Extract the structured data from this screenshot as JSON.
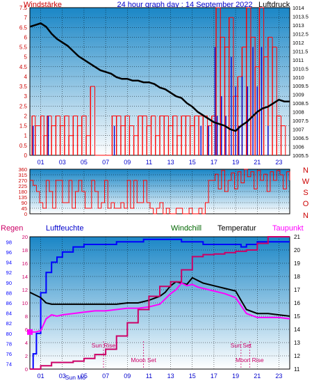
{
  "header": {
    "title": "24 hour graph day : 14 September 2022",
    "left_label": "Windstärke",
    "right_label": "Luftdruck"
  },
  "legend": {
    "regen": "Regen",
    "luftfeuchte": "Luftfeuchte",
    "windchill": "Windchill",
    "temperatur": "Temperatur",
    "taupunkt": "Taupunkt"
  },
  "compass": [
    "N",
    "W",
    "S",
    "O",
    "N"
  ],
  "colors": {
    "background_top": "#1a86c6",
    "background_bottom": "#ffffff",
    "wind": "#ff0000",
    "gust": "#0000cc",
    "pressure": "#000000",
    "temperature": "#000000",
    "humidity": "#0000ff",
    "dewpoint": "#ff00ff",
    "rain": "#cc0066",
    "axis_wind": "#cc0000",
    "axis_pressure": "#000000"
  },
  "annotations": [
    {
      "label": "Sun Rise",
      "hour": 6.8
    },
    {
      "label": "Sun Set",
      "hour": 19.5
    },
    {
      "label": "Moon Set",
      "hour": 10.5
    },
    {
      "label": "Moon Rise",
      "hour": 20.3
    },
    {
      "label": "Sun Mo",
      "hour": 4.2
    }
  ],
  "chart_data": [
    {
      "type": "line",
      "name": "wind_pressure",
      "xlabel": "",
      "x_ticks": [
        "01",
        "03",
        "05",
        "07",
        "09",
        "11",
        "13",
        "15",
        "17",
        "19",
        "21",
        "23"
      ],
      "x_tick_hours": [
        1,
        3,
        5,
        7,
        9,
        11,
        13,
        15,
        17,
        19,
        21,
        23
      ],
      "xlim": [
        0,
        24
      ],
      "ylabel_left": "Windstärke",
      "ylim_left": [
        0,
        7.5
      ],
      "yticks_left": [
        "0",
        "0.5",
        "1",
        "1.5",
        "2",
        "2.5",
        "3",
        "3.5",
        "4",
        "4.5",
        "5",
        "5.5",
        "6",
        "6.5",
        "7",
        "7.5"
      ],
      "ylabel_right": "Luftdruck",
      "ylim_right": [
        1005.5,
        1014
      ],
      "yticks_right": [
        "1005.5",
        "1006",
        "1006.5",
        "1007",
        "1007.5",
        "1008",
        "1008.5",
        "1009",
        "1009.5",
        "1010",
        "1010.5",
        "1011",
        "1011.5",
        "1012",
        "1012.5",
        "1013",
        "1013.5",
        "1014"
      ],
      "series": [
        {
          "name": "Luftdruck",
          "axis": "right",
          "x": [
            0,
            0.5,
            1,
            1.5,
            2,
            2.5,
            3,
            3.5,
            4,
            4.5,
            5,
            5.5,
            6,
            6.5,
            7,
            7.5,
            8,
            8.5,
            9,
            9.5,
            10,
            10.5,
            11,
            11.5,
            12,
            12.5,
            13,
            13.5,
            14,
            14.5,
            15,
            15.5,
            16,
            16.5,
            17,
            17.5,
            18,
            18.5,
            19,
            19.5,
            20,
            20.5,
            21,
            21.5,
            22,
            22.5,
            23,
            23.5,
            24
          ],
          "y": [
            1012.9,
            1013.0,
            1013.1,
            1012.9,
            1012.5,
            1012.2,
            1012.0,
            1011.8,
            1011.5,
            1011.2,
            1011.0,
            1010.8,
            1010.6,
            1010.4,
            1010.3,
            1010.2,
            1010.0,
            1009.9,
            1009.9,
            1009.8,
            1009.8,
            1009.7,
            1009.7,
            1009.6,
            1009.4,
            1009.3,
            1009.1,
            1008.9,
            1008.8,
            1008.5,
            1008.3,
            1008.0,
            1007.8,
            1007.6,
            1007.4,
            1007.3,
            1007.2,
            1007.0,
            1006.9,
            1007.2,
            1007.4,
            1007.7,
            1008.0,
            1008.2,
            1008.3,
            1008.5,
            1008.7,
            1008.6,
            1008.6
          ]
        },
        {
          "name": "Windstärke",
          "axis": "left",
          "style": "spikes",
          "x": [
            0.2,
            0.5,
            1,
            1.3,
            1.6,
            2,
            2.4,
            2.8,
            3.2,
            3.6,
            4,
            4.4,
            4.8,
            5.2,
            5.6,
            6,
            6.4,
            6.8,
            7.2,
            7.6,
            8,
            8.4,
            8.8,
            9.2,
            9.6,
            10,
            10.4,
            10.8,
            11.2,
            11.6,
            12,
            12.4,
            12.8,
            13.2,
            13.6,
            14,
            14.4,
            14.8,
            15.2,
            15.6,
            16,
            16.4,
            16.8,
            17.2,
            17.6,
            18,
            18.4,
            18.8,
            19.2,
            19.6,
            20,
            20.4,
            20.8,
            21.2,
            21.6,
            22,
            22.4,
            22.8,
            23.2,
            23.6
          ],
          "y": [
            2,
            1.5,
            2,
            1,
            2,
            1.5,
            2,
            1.5,
            2,
            1,
            2,
            1.5,
            2,
            1,
            3.5,
            0,
            0,
            0,
            0,
            2,
            2,
            1.5,
            2,
            1.5,
            1,
            2,
            2,
            1.5,
            2,
            1,
            2,
            2,
            1.5,
            2,
            1,
            2,
            2,
            1.5,
            2,
            2,
            2,
            1.5,
            2,
            7.5,
            6,
            5.5,
            7,
            3,
            4,
            5.5,
            7.5,
            6,
            4.5,
            7.5,
            5,
            6,
            5.5,
            2,
            1.5,
            0
          ]
        },
        {
          "name": "Böen",
          "axis": "left",
          "style": "spikes",
          "x": [
            0.3,
            1.7,
            7.8,
            15.8,
            16.5,
            17.1,
            17.3,
            17.7,
            18.1,
            18.6,
            19.0,
            19.3,
            19.6,
            20.1,
            20.6,
            21.0,
            21.4,
            22.0
          ],
          "y": [
            1.5,
            2,
            1.5,
            1.5,
            1.5,
            5.5,
            2,
            3,
            2,
            5,
            3.5,
            1.5,
            4,
            3.5,
            5.5,
            3.5,
            5.5,
            1.5
          ]
        }
      ]
    },
    {
      "type": "line",
      "name": "wind_direction",
      "ylabel": "",
      "ylim": [
        0,
        360
      ],
      "yticks": [
        "0",
        "45",
        "90",
        "135",
        "180",
        "225",
        "270",
        "315",
        "360"
      ],
      "xlim": [
        0,
        24
      ],
      "series": [
        {
          "name": "Windrichtung",
          "x": [
            0,
            0.3,
            0.6,
            0.9,
            1.2,
            1.5,
            1.8,
            2.1,
            2.4,
            2.7,
            3,
            3.3,
            3.6,
            3.9,
            4.2,
            4.5,
            4.8,
            5.1,
            5.4,
            5.7,
            6,
            6.3,
            6.6,
            6.9,
            7.2,
            7.5,
            7.8,
            8.1,
            8.4,
            8.7,
            9,
            9.3,
            9.6,
            9.9,
            10.2,
            10.5,
            10.8,
            11.1,
            11.4,
            11.7,
            12,
            12.3,
            12.6,
            12.9,
            13.2,
            13.5,
            13.8,
            14.1,
            14.4,
            14.7,
            15,
            15.3,
            15.6,
            15.9,
            16.2,
            16.5,
            16.8,
            17.1,
            17.4,
            17.7,
            18,
            18.3,
            18.6,
            18.9,
            19.2,
            19.5,
            19.8,
            20.1,
            20.4,
            20.7,
            21,
            21.3,
            21.6,
            21.9,
            22.2,
            22.5,
            22.8,
            23.1,
            23.4,
            23.7,
            24
          ],
          "y": [
            270,
            230,
            180,
            90,
            45,
            270,
            180,
            45,
            270,
            270,
            90,
            90,
            270,
            45,
            180,
            270,
            180,
            45,
            45,
            270,
            180,
            45,
            90,
            270,
            45,
            90,
            45,
            45,
            90,
            45,
            270,
            45,
            270,
            90,
            90,
            270,
            90,
            45,
            0,
            45,
            90,
            0,
            45,
            0,
            0,
            45,
            45,
            0,
            0,
            45,
            0,
            0,
            45,
            0,
            90,
            270,
            270,
            320,
            200,
            350,
            180,
            270,
            330,
            200,
            340,
            250,
            360,
            300,
            340,
            200,
            350,
            270,
            320,
            180,
            340,
            270,
            350,
            315,
            200,
            340,
            270
          ]
        }
      ]
    },
    {
      "type": "line",
      "name": "temperature_humidity",
      "xlim": [
        0,
        24
      ],
      "x_ticks": [
        "01",
        "03",
        "05",
        "07",
        "09",
        "11",
        "13",
        "15",
        "17",
        "19",
        "21",
        "23"
      ],
      "x_tick_hours": [
        1,
        3,
        5,
        7,
        9,
        11,
        13,
        15,
        17,
        19,
        21,
        23
      ],
      "ylabel_left": "Luftfeuchte",
      "ylim_left": [
        73,
        99
      ],
      "yticks_left": [
        "74",
        "76",
        "78",
        "80",
        "82",
        "84",
        "86",
        "88",
        "90",
        "92",
        "94",
        "96",
        "98"
      ],
      "ylabel_rain": "Regen",
      "ylim_rain": [
        0,
        20
      ],
      "yticks_rain": [
        "0",
        "2",
        "4",
        "6",
        "8",
        "10",
        "12",
        "14",
        "16",
        "18",
        "20"
      ],
      "ylabel_right": "Temperatur",
      "ylim_right": [
        11,
        21
      ],
      "yticks_right": [
        "11",
        "12",
        "13",
        "14",
        "15",
        "16",
        "17",
        "18",
        "19",
        "20",
        "21"
      ],
      "series": [
        {
          "name": "Luftfeuchte",
          "axis": "left",
          "x": [
            0,
            0.3,
            0.6,
            1,
            1.5,
            2,
            2.5,
            3,
            3.5,
            4,
            5,
            6,
            7,
            8,
            9,
            10,
            10.5,
            11,
            12,
            13,
            14,
            15,
            16,
            17,
            18,
            19,
            19.5,
            20,
            21,
            22,
            23,
            24
          ],
          "y": [
            73,
            76,
            80,
            88,
            92,
            94,
            95,
            96,
            96,
            97,
            97.5,
            97.5,
            97.5,
            98,
            98,
            98,
            98.5,
            98.5,
            98.5,
            98.5,
            98,
            98,
            97.5,
            97.5,
            97.5,
            97.5,
            97,
            97.5,
            98,
            98,
            98,
            98
          ]
        },
        {
          "name": "Temperatur",
          "axis": "right",
          "x": [
            0,
            0.5,
            1,
            1.5,
            2,
            3,
            4,
            5,
            6,
            7,
            8,
            9,
            10,
            11,
            12,
            12.5,
            13,
            13.5,
            14,
            14.5,
            15,
            15.5,
            16,
            17,
            18,
            19,
            19.5,
            20,
            21,
            22,
            23,
            24
          ],
          "y": [
            16.8,
            16.6,
            16.4,
            16.0,
            15.9,
            15.9,
            15.9,
            15.9,
            15.9,
            15.9,
            15.9,
            16.0,
            16.0,
            16.2,
            16.5,
            16.8,
            17.3,
            17.6,
            17.5,
            17.4,
            17.9,
            17.7,
            17.5,
            17.3,
            17.1,
            16.9,
            16.2,
            15.5,
            15.2,
            15.2,
            15.1,
            15.0
          ]
        },
        {
          "name": "Taupunkt",
          "axis": "right",
          "x": [
            0,
            0.5,
            1,
            1.5,
            2,
            2.5,
            3,
            4,
            5,
            6,
            7,
            8,
            9,
            10,
            11,
            12,
            12.5,
            13,
            13.5,
            14,
            14.5,
            15,
            15.5,
            16,
            17,
            18,
            19,
            19.5,
            20,
            21,
            22,
            23,
            24
          ],
          "y": [
            13.8,
            13.8,
            13.9,
            14.8,
            15.1,
            15.0,
            15.1,
            15.2,
            15.3,
            15.4,
            15.4,
            15.5,
            15.6,
            15.6,
            15.7,
            15.9,
            16.3,
            16.7,
            17.0,
            17.5,
            17.3,
            17.4,
            17.2,
            17.1,
            16.9,
            16.7,
            16.4,
            15.8,
            15.2,
            14.9,
            14.9,
            14.9,
            14.8
          ]
        },
        {
          "name": "Windchill",
          "axis": "right",
          "x": [
            0,
            24
          ],
          "y": [
            16.8,
            15.0
          ]
        },
        {
          "name": "Regen",
          "axis": "rain",
          "x": [
            0,
            1,
            2,
            3,
            4,
            5,
            6,
            7,
            8,
            9,
            10,
            11,
            12,
            13,
            14,
            15,
            16,
            17,
            18,
            19,
            20,
            21,
            22,
            23,
            24
          ],
          "y": [
            0,
            0.5,
            1,
            1,
            1.2,
            1.6,
            2.2,
            3,
            5,
            7,
            9,
            11,
            12.5,
            13.2,
            15,
            17,
            17.3,
            17.4,
            17.6,
            17.8,
            18,
            19,
            20,
            20,
            20
          ]
        }
      ]
    }
  ]
}
